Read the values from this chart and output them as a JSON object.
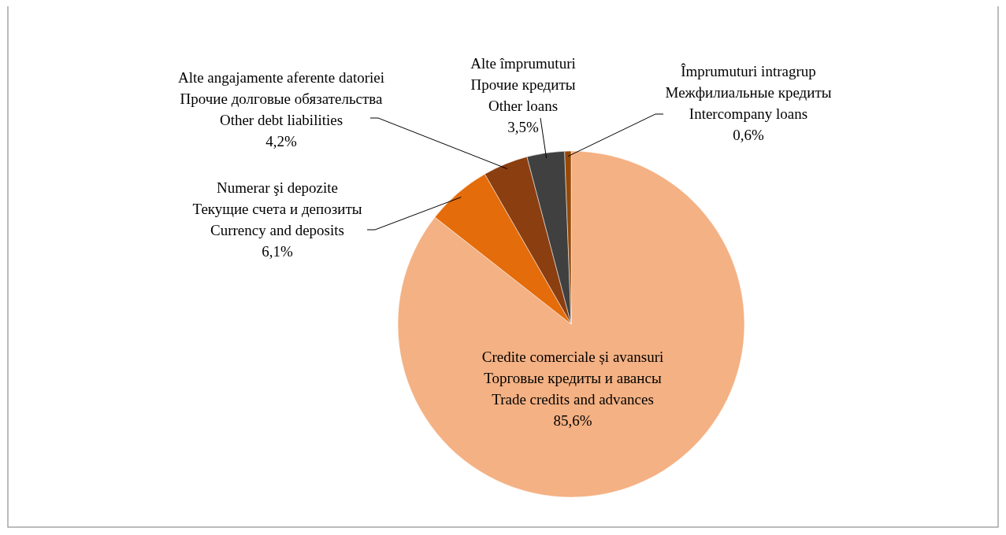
{
  "chart_data": {
    "type": "pie",
    "categories": [
      "Credite comerciale și avansuri\nТорговые кредиты и авансы\nTrade credits and advances",
      "Numerar şi depozite\nТекущие счета и депозиты\nCurrency and deposits",
      "Alte angajamente aferente datoriei\nПрочие долговые обязательства\nOther debt liabilities",
      "Alte împrumuturi\nПрочие кредиты\nOther loans",
      "Împrumuturi intragrup\nМежфилиальные кредиты\nIntercompany loans"
    ],
    "values": [
      85.6,
      6.1,
      4.2,
      3.5,
      0.6
    ],
    "value_labels": [
      "85,6%",
      "6,1%",
      "4,2%",
      "3,5%",
      "0,6%"
    ],
    "colors": [
      "#f4b183",
      "#e46c0a",
      "#8b3e0f",
      "#404040",
      "#974806"
    ]
  }
}
